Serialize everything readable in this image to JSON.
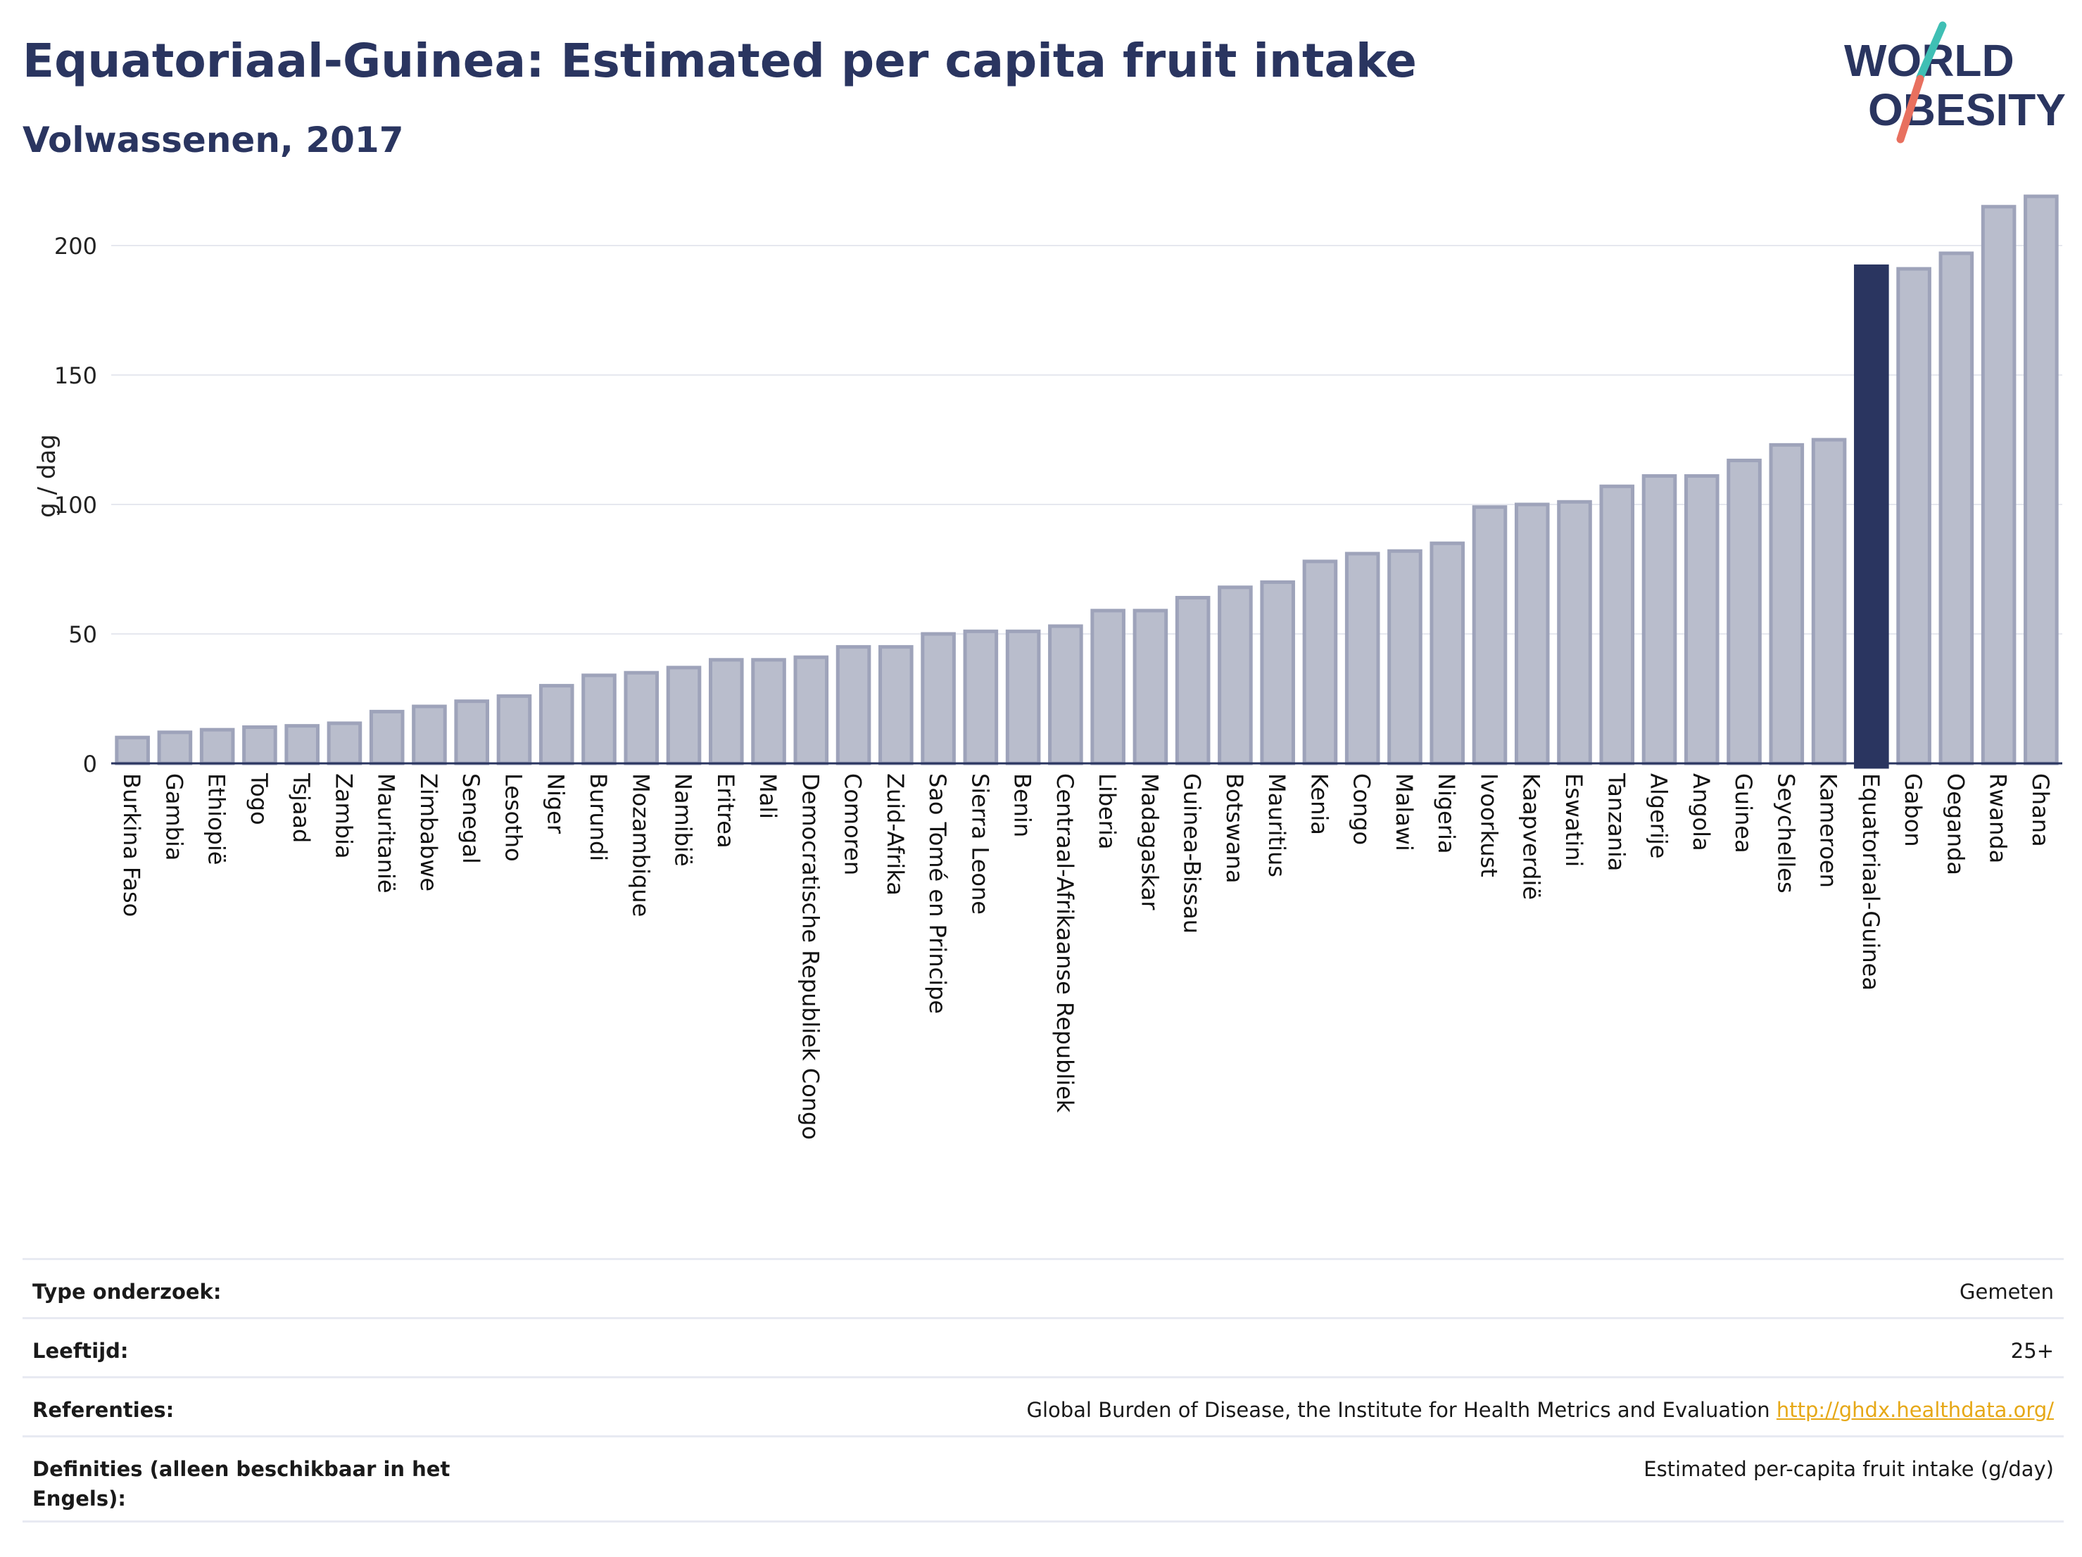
{
  "header": {
    "title": "Equatoriaal-Guinea: Estimated per capita fruit intake",
    "subtitle": "Volwassenen, 2017"
  },
  "logo": {
    "line1": "WORLD",
    "line2": "OBESITY"
  },
  "colors": {
    "bar": "#b9bdcc",
    "bar_stroke": "#9ea3ba",
    "highlight": "#2a3560",
    "grid": "#e6e8ef",
    "axis": "#2a3560",
    "logo_teal": "#3fbfb4",
    "logo_red": "#e8705f",
    "link": "#e6a817"
  },
  "chart_data": {
    "type": "bar",
    "title": "Equatoriaal-Guinea: Estimated per capita fruit intake",
    "subtitle": "Volwassenen, 2017",
    "xlabel": "",
    "ylabel": "g / dag",
    "ylim": [
      0,
      222
    ],
    "yticks": [
      0,
      50,
      100,
      150,
      200
    ],
    "grid": true,
    "highlight": "Equatoriaal-Guinea",
    "categories": [
      "Burkina Faso",
      "Gambia",
      "Ethiopië",
      "Togo",
      "Tsjaad",
      "Zambia",
      "Mauritanië",
      "Zimbabwe",
      "Senegal",
      "Lesotho",
      "Niger",
      "Burundi",
      "Mozambique",
      "Namibië",
      "Eritrea",
      "Mali",
      "Democratische Republiek Congo",
      "Comoren",
      "Zuid-Afrika",
      "Sao Tomé en Principe",
      "Sierra Leone",
      "Benin",
      "Centraal-Afrikaanse Republiek",
      "Liberia",
      "Madagaskar",
      "Guinea-Bissau",
      "Botswana",
      "Mauritius",
      "Kenia",
      "Congo",
      "Malawi",
      "Nigeria",
      "Ivoorkust",
      "Kaapverdië",
      "Eswatini",
      "Tanzania",
      "Algerije",
      "Angola",
      "Guinea",
      "Seychelles",
      "Kameroen",
      "Equatoriaal-Guinea",
      "Gabon",
      "Oeganda",
      "Rwanda",
      "Ghana"
    ],
    "values": [
      10,
      12,
      13,
      14,
      14.5,
      15.5,
      20,
      22,
      24,
      26,
      30,
      34,
      35,
      37,
      40,
      40,
      41,
      45,
      45,
      50,
      51,
      51,
      53,
      59,
      59,
      64,
      68,
      70,
      78,
      81,
      82,
      85,
      99,
      100,
      101,
      107,
      111,
      111,
      117,
      123,
      125,
      192,
      191,
      197,
      215,
      219
    ]
  },
  "info": [
    {
      "label": "Type onderzoek:",
      "value": "Gemeten",
      "link": ""
    },
    {
      "label": "Leeftijd:",
      "value": "25+",
      "link": ""
    },
    {
      "label": "Referenties:",
      "value": "Global Burden of Disease, the Institute for Health Metrics and Evaluation",
      "link": "http://ghdx.healthdata.org/"
    },
    {
      "label": "Definities (alleen beschikbaar in het Engels):",
      "value": "Estimated per-capita fruit intake (g/day)",
      "link": ""
    }
  ]
}
